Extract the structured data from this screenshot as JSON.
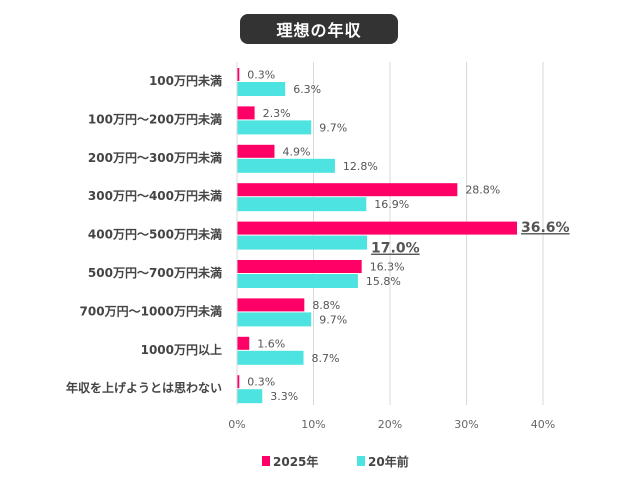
{
  "chart_data": {
    "type": "bar",
    "orientation": "horizontal",
    "title": "理想の年収",
    "categories": [
      "100万円未満",
      "100万円～200万円未満",
      "200万円～300万円未満",
      "300万円～400万円未満",
      "400万円～500万円未満",
      "500万円～700万円未満",
      "700万円～1000万円未満",
      "1000万円以上",
      "年収を上げようとは思わない"
    ],
    "series": [
      {
        "name": "2025年",
        "color": "#ff0066",
        "values": [
          0.3,
          2.3,
          4.9,
          28.8,
          36.6,
          16.3,
          8.8,
          1.6,
          0.3
        ],
        "labels": [
          "0.3%",
          "2.3%",
          "4.9%",
          "28.8%",
          "36.6%",
          "16.3%",
          "8.8%",
          "1.6%",
          "0.3%"
        ]
      },
      {
        "name": "20年前",
        "color": "#4de3e0",
        "values": [
          6.3,
          9.7,
          12.8,
          16.9,
          17.0,
          15.8,
          9.7,
          8.7,
          3.3
        ],
        "labels": [
          "6.3%",
          "9.7%",
          "12.8%",
          "16.9%",
          "17.0%",
          "15.8%",
          "9.7%",
          "8.7%",
          "3.3%"
        ]
      }
    ],
    "highlighted": {
      "category": "400万円～500万円未満"
    },
    "xlim": [
      0,
      40
    ],
    "xticks": [
      "0%",
      "10%",
      "20%",
      "30%",
      "40%"
    ],
    "grid": true,
    "legend": "bottom"
  }
}
